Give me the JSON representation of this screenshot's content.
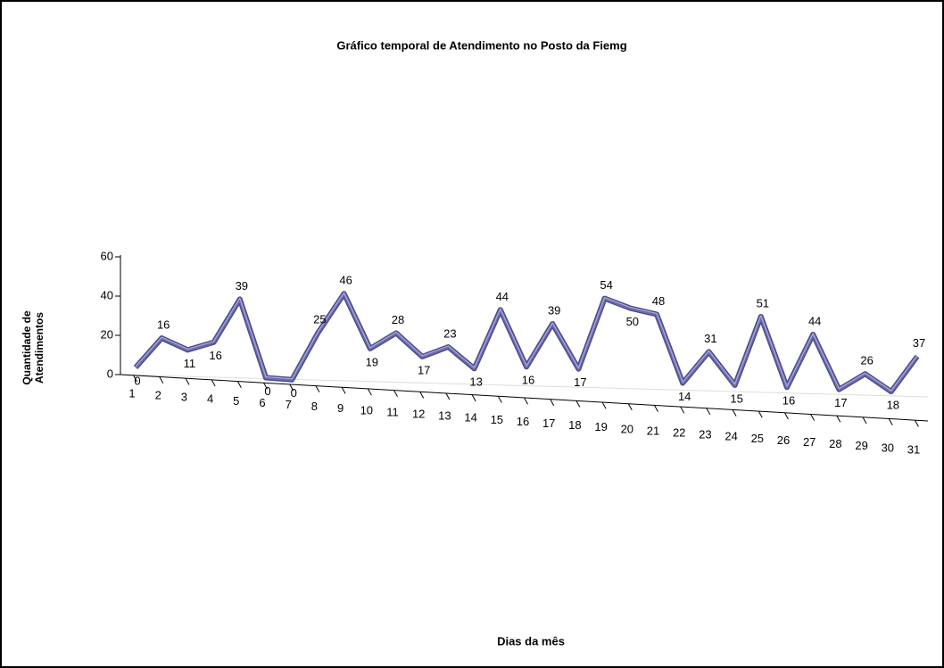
{
  "chart_data": {
    "type": "line",
    "title": "Gráfico temporal de Atendimento no Posto da Fiemg",
    "x_label": "Dias da mês",
    "y_label": [
      "Quantidade de",
      "Atendimentos"
    ],
    "categories": [
      "1",
      "2",
      "3",
      "4",
      "5",
      "6",
      "7",
      "8",
      "9",
      "10",
      "11",
      "12",
      "13",
      "14",
      "15",
      "16",
      "17",
      "18",
      "19",
      "20",
      "21",
      "22",
      "23",
      "24",
      "25",
      "26",
      "27",
      "28",
      "29",
      "30",
      "31"
    ],
    "values": [
      0,
      16,
      11,
      16,
      39,
      0,
      0,
      25,
      46,
      19,
      28,
      17,
      23,
      13,
      44,
      16,
      39,
      17,
      54,
      50,
      48,
      14,
      31,
      15,
      51,
      16,
      44,
      17,
      26,
      18,
      37
    ],
    "color": "#6a6ab0",
    "ylim": [
      0,
      60
    ],
    "yticks": [
      0,
      20,
      40,
      60
    ]
  }
}
